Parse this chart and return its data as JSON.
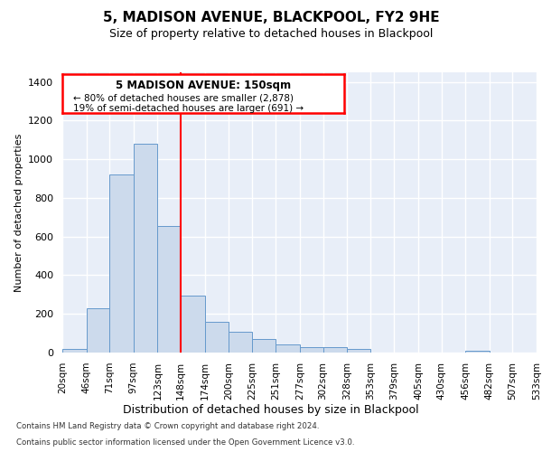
{
  "title": "5, MADISON AVENUE, BLACKPOOL, FY2 9HE",
  "subtitle": "Size of property relative to detached houses in Blackpool",
  "xlabel": "Distribution of detached houses by size in Blackpool",
  "ylabel": "Number of detached properties",
  "bar_color": "#ccdaec",
  "bar_edge_color": "#6699cc",
  "vline_x": 148,
  "vline_color": "red",
  "property_label": "5 MADISON AVENUE: 150sqm",
  "annotation_line1": "← 80% of detached houses are smaller (2,878)",
  "annotation_line2": "19% of semi-detached houses are larger (691) →",
  "footnote1": "Contains HM Land Registry data © Crown copyright and database right 2024.",
  "footnote2": "Contains public sector information licensed under the Open Government Licence v3.0.",
  "bins": [
    20,
    46,
    71,
    97,
    123,
    148,
    174,
    200,
    225,
    251,
    277,
    302,
    328,
    353,
    379,
    405,
    430,
    456,
    482,
    507,
    533
  ],
  "values": [
    20,
    228,
    920,
    1080,
    655,
    293,
    160,
    107,
    70,
    42,
    28,
    28,
    20,
    0,
    0,
    0,
    0,
    10,
    0,
    0
  ],
  "ylim": [
    0,
    1450
  ],
  "yticks": [
    0,
    200,
    400,
    600,
    800,
    1000,
    1200,
    1400
  ],
  "background_color": "#e8eef8",
  "grid_color": "#ffffff",
  "fig_bg_color": "#ffffff",
  "title_fontsize": 11,
  "subtitle_fontsize": 9,
  "ylabel_fontsize": 8,
  "xlabel_fontsize": 9,
  "ytick_fontsize": 8,
  "xtick_fontsize": 7.5
}
